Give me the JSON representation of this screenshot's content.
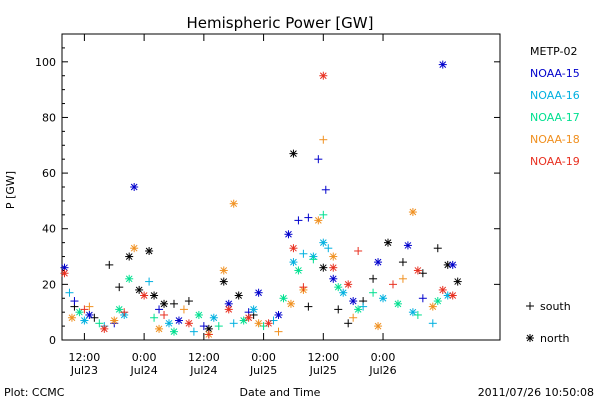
{
  "chart_data": {
    "type": "scatter",
    "title": "Hemispheric Power [GW]",
    "ylabel": "P [GW]",
    "xlabel": "Date and Time",
    "ylim": [
      0,
      110
    ],
    "xlim": [
      "2011-07-23 07:30",
      "2011-07-26 23:30"
    ],
    "y_ticks": [
      0,
      20,
      40,
      60,
      80,
      100
    ],
    "x_ticks": [
      {
        "at": "2011-07-23 12:00",
        "line1": "12:00",
        "line2": "Jul23"
      },
      {
        "at": "2011-07-24 00:00",
        "line1": "0:00",
        "line2": "Jul24"
      },
      {
        "at": "2011-07-24 12:00",
        "line1": "12:00",
        "line2": "Jul24"
      },
      {
        "at": "2011-07-25 00:00",
        "line1": "0:00",
        "line2": "Jul25"
      },
      {
        "at": "2011-07-25 12:00",
        "line1": "12:00",
        "line2": "Jul25"
      },
      {
        "at": "2011-07-26 00:00",
        "line1": "0:00",
        "line2": "Jul26"
      }
    ],
    "grid": false,
    "legend_position": "right",
    "series": [
      {
        "name": "METP-02",
        "color": "#000000",
        "points": [
          [
            "2011-07-23 10:00",
            12,
            "s"
          ],
          [
            "2011-07-23 14:00",
            8,
            "s"
          ],
          [
            "2011-07-23 17:00",
            27,
            "s"
          ],
          [
            "2011-07-23 19:00",
            19,
            "s"
          ],
          [
            "2011-07-23 21:00",
            30,
            "n"
          ],
          [
            "2011-07-23 23:00",
            18,
            "n"
          ],
          [
            "2011-07-24 01:00",
            32,
            "n"
          ],
          [
            "2011-07-24 02:00",
            16,
            "n"
          ],
          [
            "2011-07-24 04:00",
            13,
            "n"
          ],
          [
            "2011-07-24 06:00",
            13,
            "s"
          ],
          [
            "2011-07-24 09:00",
            14,
            "s"
          ],
          [
            "2011-07-24 13:00",
            4,
            "n"
          ],
          [
            "2011-07-24 16:00",
            21,
            "n"
          ],
          [
            "2011-07-24 19:00",
            16,
            "n"
          ],
          [
            "2011-07-24 22:00",
            9,
            "s"
          ],
          [
            "2011-07-25 06:00",
            67,
            "n"
          ],
          [
            "2011-07-25 09:00",
            12,
            "s"
          ],
          [
            "2011-07-25 12:00",
            26,
            "n"
          ],
          [
            "2011-07-25 15:00",
            11,
            "s"
          ],
          [
            "2011-07-25 17:00",
            6,
            "s"
          ],
          [
            "2011-07-25 20:00",
            14,
            "s"
          ],
          [
            "2011-07-25 22:00",
            22,
            "s"
          ],
          [
            "2011-07-26 01:00",
            35,
            "n"
          ],
          [
            "2011-07-26 04:00",
            28,
            "s"
          ],
          [
            "2011-07-26 08:00",
            24,
            "s"
          ],
          [
            "2011-07-26 11:00",
            33,
            "s"
          ],
          [
            "2011-07-26 13:00",
            27,
            "n"
          ],
          [
            "2011-07-26 15:00",
            21,
            "n"
          ]
        ]
      },
      {
        "name": "NOAA-15",
        "color": "#0000cc",
        "points": [
          [
            "2011-07-23 08:00",
            26,
            "n"
          ],
          [
            "2011-07-23 10:00",
            14,
            "s"
          ],
          [
            "2011-07-23 13:00",
            9,
            "n"
          ],
          [
            "2011-07-23 18:00",
            6,
            "s"
          ],
          [
            "2011-07-23 22:00",
            55,
            "n"
          ],
          [
            "2011-07-24 03:00",
            11,
            "s"
          ],
          [
            "2011-07-24 07:00",
            7,
            "n"
          ],
          [
            "2011-07-24 12:00",
            5,
            "s"
          ],
          [
            "2011-07-24 17:00",
            13,
            "n"
          ],
          [
            "2011-07-24 21:00",
            10,
            "s"
          ],
          [
            "2011-07-24 23:00",
            17,
            "n"
          ],
          [
            "2011-07-25 03:00",
            9,
            "n"
          ],
          [
            "2011-07-25 05:00",
            38,
            "n"
          ],
          [
            "2011-07-25 07:00",
            43,
            "s"
          ],
          [
            "2011-07-25 09:00",
            44,
            "s"
          ],
          [
            "2011-07-25 11:00",
            65,
            "s"
          ],
          [
            "2011-07-25 12:30",
            54,
            "s"
          ],
          [
            "2011-07-25 14:00",
            22,
            "n"
          ],
          [
            "2011-07-25 18:00",
            14,
            "n"
          ],
          [
            "2011-07-25 23:00",
            28,
            "n"
          ],
          [
            "2011-07-26 05:00",
            34,
            "n"
          ],
          [
            "2011-07-26 08:00",
            15,
            "s"
          ],
          [
            "2011-07-26 12:00",
            99,
            "n"
          ],
          [
            "2011-07-26 14:00",
            27,
            "n"
          ]
        ]
      },
      {
        "name": "NOAA-16",
        "color": "#00b0e0",
        "points": [
          [
            "2011-07-23 09:00",
            17,
            "s"
          ],
          [
            "2011-07-23 12:00",
            7,
            "n"
          ],
          [
            "2011-07-23 16:00",
            5,
            "s"
          ],
          [
            "2011-07-23 20:00",
            9,
            "n"
          ],
          [
            "2011-07-24 01:00",
            21,
            "s"
          ],
          [
            "2011-07-24 05:00",
            6,
            "n"
          ],
          [
            "2011-07-24 10:00",
            3,
            "s"
          ],
          [
            "2011-07-24 14:00",
            8,
            "n"
          ],
          [
            "2011-07-24 18:00",
            6,
            "s"
          ],
          [
            "2011-07-24 22:00",
            11,
            "n"
          ],
          [
            "2011-07-25 02:00",
            7,
            "s"
          ],
          [
            "2011-07-25 06:00",
            28,
            "n"
          ],
          [
            "2011-07-25 08:00",
            31,
            "s"
          ],
          [
            "2011-07-25 10:00",
            30,
            "n"
          ],
          [
            "2011-07-25 12:00",
            35,
            "n"
          ],
          [
            "2011-07-25 13:00",
            33,
            "s"
          ],
          [
            "2011-07-25 16:00",
            17,
            "n"
          ],
          [
            "2011-07-25 20:00",
            12,
            "s"
          ],
          [
            "2011-07-26 00:00",
            15,
            "n"
          ],
          [
            "2011-07-26 06:00",
            10,
            "n"
          ],
          [
            "2011-07-26 10:00",
            6,
            "s"
          ],
          [
            "2011-07-26 13:00",
            16,
            "n"
          ]
        ]
      },
      {
        "name": "NOAA-17",
        "color": "#00e090",
        "points": [
          [
            "2011-07-23 11:00",
            10,
            "n"
          ],
          [
            "2011-07-23 15:00",
            6,
            "s"
          ],
          [
            "2011-07-23 19:00",
            11,
            "n"
          ],
          [
            "2011-07-23 21:00",
            22,
            "n"
          ],
          [
            "2011-07-24 02:00",
            8,
            "s"
          ],
          [
            "2011-07-24 06:00",
            3,
            "n"
          ],
          [
            "2011-07-24 11:00",
            9,
            "n"
          ],
          [
            "2011-07-24 15:00",
            5,
            "s"
          ],
          [
            "2011-07-24 20:00",
            7,
            "n"
          ],
          [
            "2011-07-25 00:00",
            5,
            "s"
          ],
          [
            "2011-07-25 04:00",
            15,
            "n"
          ],
          [
            "2011-07-25 07:00",
            25,
            "n"
          ],
          [
            "2011-07-25 10:00",
            29,
            "s"
          ],
          [
            "2011-07-25 12:00",
            45,
            "s"
          ],
          [
            "2011-07-25 15:00",
            19,
            "n"
          ],
          [
            "2011-07-25 19:00",
            11,
            "n"
          ],
          [
            "2011-07-25 22:00",
            17,
            "s"
          ],
          [
            "2011-07-26 03:00",
            13,
            "n"
          ],
          [
            "2011-07-26 07:00",
            9,
            "s"
          ],
          [
            "2011-07-26 11:00",
            14,
            "n"
          ]
        ]
      },
      {
        "name": "NOAA-18",
        "color": "#f09020",
        "points": [
          [
            "2011-07-23 09:30",
            8,
            "n"
          ],
          [
            "2011-07-23 13:00",
            12,
            "s"
          ],
          [
            "2011-07-23 18:00",
            7,
            "n"
          ],
          [
            "2011-07-23 22:00",
            33,
            "n"
          ],
          [
            "2011-07-24 03:00",
            4,
            "n"
          ],
          [
            "2011-07-24 08:00",
            11,
            "s"
          ],
          [
            "2011-07-24 13:00",
            2,
            "n"
          ],
          [
            "2011-07-24 16:00",
            25,
            "n"
          ],
          [
            "2011-07-24 18:00",
            49,
            "n"
          ],
          [
            "2011-07-24 23:00",
            6,
            "n"
          ],
          [
            "2011-07-25 03:00",
            3,
            "s"
          ],
          [
            "2011-07-25 05:30",
            13,
            "n"
          ],
          [
            "2011-07-25 08:00",
            18,
            "n"
          ],
          [
            "2011-07-25 11:00",
            43,
            "n"
          ],
          [
            "2011-07-25 12:00",
            72,
            "s"
          ],
          [
            "2011-07-25 14:00",
            30,
            "n"
          ],
          [
            "2011-07-25 18:00",
            8,
            "s"
          ],
          [
            "2011-07-25 23:00",
            5,
            "n"
          ],
          [
            "2011-07-26 04:00",
            22,
            "s"
          ],
          [
            "2011-07-26 06:00",
            46,
            "n"
          ],
          [
            "2011-07-26 10:00",
            12,
            "n"
          ]
        ]
      },
      {
        "name": "NOAA-19",
        "color": "#e83020",
        "points": [
          [
            "2011-07-23 08:00",
            24,
            "n"
          ],
          [
            "2011-07-23 12:00",
            11,
            "s"
          ],
          [
            "2011-07-23 16:00",
            4,
            "n"
          ],
          [
            "2011-07-23 20:00",
            10,
            "s"
          ],
          [
            "2011-07-24 00:00",
            16,
            "n"
          ],
          [
            "2011-07-24 04:00",
            9,
            "s"
          ],
          [
            "2011-07-24 09:00",
            6,
            "n"
          ],
          [
            "2011-07-24 13:00",
            2,
            "s"
          ],
          [
            "2011-07-24 17:00",
            11,
            "n"
          ],
          [
            "2011-07-24 21:00",
            8,
            "n"
          ],
          [
            "2011-07-25 01:00",
            6,
            "n"
          ],
          [
            "2011-07-25 06:00",
            33,
            "n"
          ],
          [
            "2011-07-25 08:00",
            19,
            "s"
          ],
          [
            "2011-07-25 12:00",
            95,
            "n"
          ],
          [
            "2011-07-25 14:00",
            26,
            "n"
          ],
          [
            "2011-07-25 17:00",
            20,
            "n"
          ],
          [
            "2011-07-25 19:00",
            32,
            "s"
          ],
          [
            "2011-07-26 02:00",
            20,
            "s"
          ],
          [
            "2011-07-26 07:00",
            25,
            "n"
          ],
          [
            "2011-07-26 12:00",
            18,
            "n"
          ],
          [
            "2011-07-26 14:00",
            16,
            "n"
          ]
        ]
      }
    ],
    "marker_legend": [
      {
        "symbol": "+",
        "label": "south"
      },
      {
        "symbol": "*",
        "label": "north"
      }
    ]
  },
  "footer": {
    "left": "Plot: CCMC",
    "center": "Date and Time",
    "right": "2011/07/26 10:50:08"
  }
}
